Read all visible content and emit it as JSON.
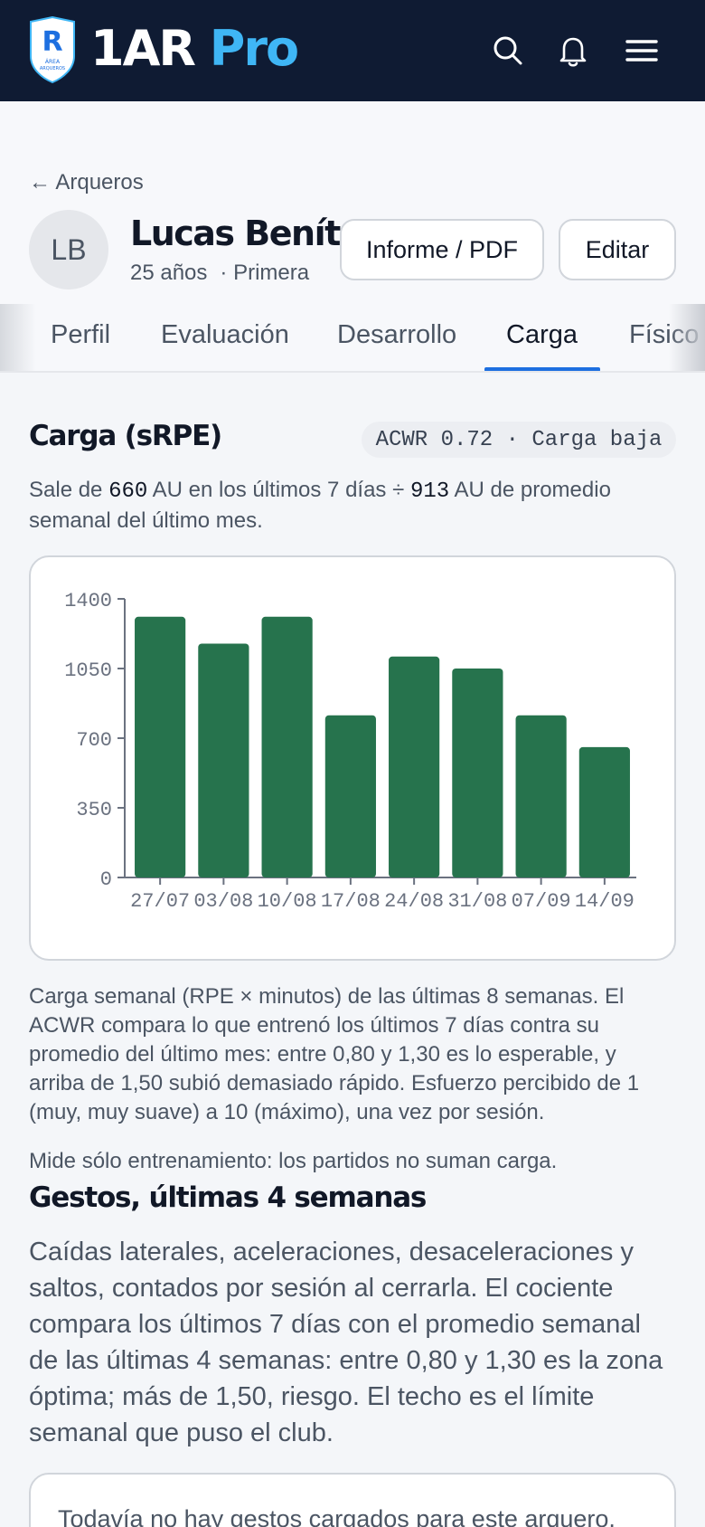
{
  "header": {
    "brand_main": "1AR",
    "brand_accent": "Pro",
    "logo_letter": "R",
    "logo_text_1": "ÁREA",
    "logo_text_2": "ARQUEROS",
    "icons": [
      "search-icon",
      "bell-icon",
      "menu-icon"
    ],
    "colors": {
      "bar": "#0f1b33",
      "accent": "#3fb6f5"
    }
  },
  "profile": {
    "back_label": "← Arqueros",
    "initials": "LB",
    "name": "Lucas Benítez",
    "age": "25 años",
    "category": "· Primera",
    "report_button": "Informe / PDF",
    "edit_button": "Editar"
  },
  "tabs": [
    {
      "label": "Perfil"
    },
    {
      "label": "Evaluación"
    },
    {
      "label": "Desarrollo"
    },
    {
      "label": "Carga",
      "active": true
    },
    {
      "label": "Físico"
    }
  ],
  "load": {
    "title": "Carga (sRPE)",
    "acwr_badge": "ACWR 0.72 · Carga baja",
    "summary_pre": "Sale de ",
    "summary_acute": "660",
    "summary_mid": " AU en los últimos 7 días ÷ ",
    "summary_chronic": "913",
    "summary_post": " AU de promedio semanal del último mes.",
    "explanation": "Carga semanal (RPE × minutos) de las últimas 8 semanas. El ACWR compara lo que entrenó los últimos 7 días contra su promedio del último mes: entre 0,80 y 1,30 es lo esperable, y arriba de 1,50 subió demasiado rápido. Esfuerzo percibido de 1 (muy, muy suave) a 10 (máximo), una vez por sesión.",
    "note": "Mide sólo entrenamiento: los partidos no suman carga."
  },
  "chart_data": {
    "type": "bar",
    "categories": [
      "27/07",
      "03/08",
      "10/08",
      "17/08",
      "24/08",
      "31/08",
      "07/09",
      "14/09"
    ],
    "values": [
      1310,
      1175,
      1310,
      815,
      1110,
      1050,
      815,
      655
    ],
    "yticks": [
      0,
      350,
      700,
      1050,
      1400
    ],
    "ylim": [
      0,
      1400
    ],
    "bar_color": "#26734d",
    "grid": false
  },
  "gestures": {
    "title": "Gestos, últimas 4 semanas",
    "description": "Caídas laterales, aceleraciones, desaceleraciones y saltos, contados por sesión al cerrarla. El cociente compara los últimos 7 días con el promedio semanal de las últimas 4 semanas: entre 0,80 y 1,30 es la zona óptima; más de 1,50, riesgo. El techo es el límite semanal que puso el club.",
    "empty_message": "Todavía no hay gestos cargados para este arquero."
  }
}
